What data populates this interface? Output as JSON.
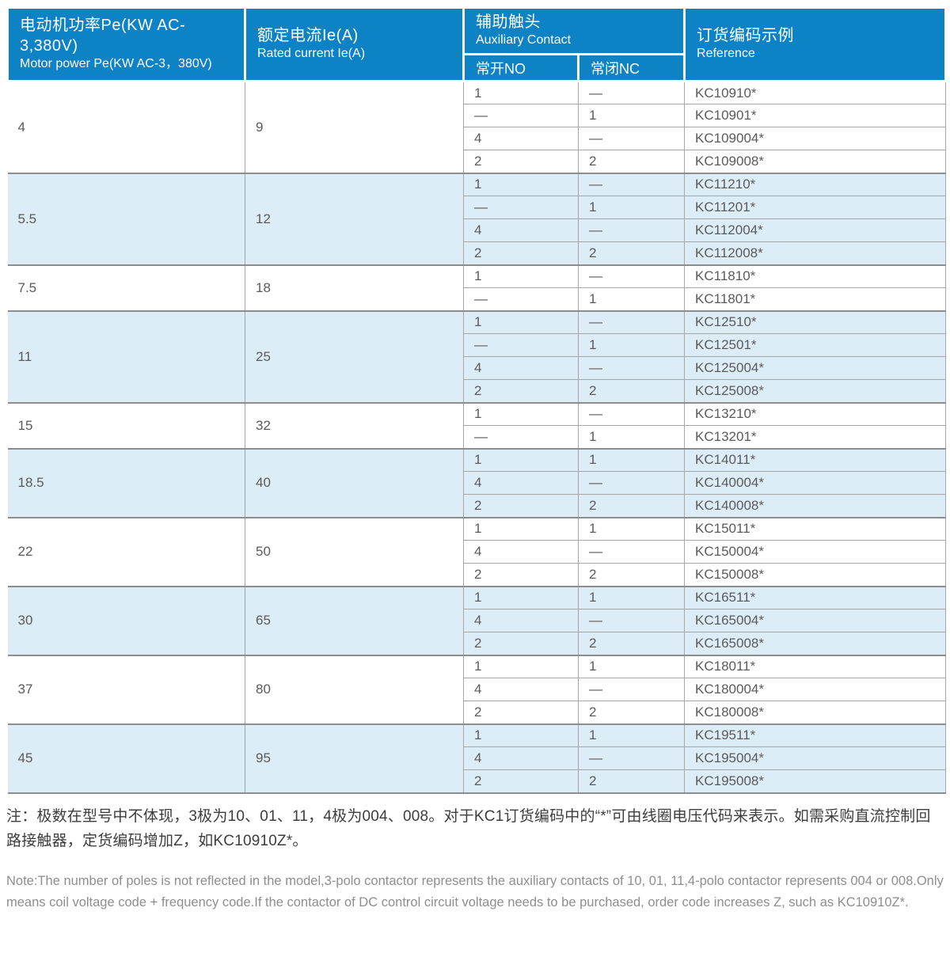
{
  "colors": {
    "header_bg": "#0d82c5",
    "row_bg": "#ffffff",
    "row_alt_bg": "#ddedf8",
    "border_inner": "#a6a6a6",
    "border_group": "#8d8d8d",
    "header_text": "#ffffff",
    "cell_text": "#5a5a5a",
    "note_zh_text": "#3d3d3d",
    "note_en_text": "#8e8e8e"
  },
  "table": {
    "header": {
      "motor_power": {
        "zh": "电动机功率Pe(KW AC-3,380V)",
        "en": "Motor power Pe(KW AC-3，380V)"
      },
      "rated_current": {
        "zh": "额定电流Ie(A)",
        "en": "Rated current Ie(A)"
      },
      "auxiliary": {
        "zh": "辅助触头",
        "en": "Auxiliary Contact"
      },
      "no_label": "常开NO",
      "nc_label": "常闭NC",
      "reference": {
        "zh": "订货编码示例",
        "en": "Reference"
      }
    },
    "groups": [
      {
        "power": "4",
        "current": "9",
        "rows": [
          [
            "1",
            "—",
            "KC10910*"
          ],
          [
            "—",
            "1",
            "KC10901*"
          ],
          [
            "4",
            "—",
            "KC109004*"
          ],
          [
            "2",
            "2",
            "KC109008*"
          ]
        ]
      },
      {
        "power": "5.5",
        "current": "12",
        "rows": [
          [
            "1",
            "—",
            "KC11210*"
          ],
          [
            "—",
            "1",
            "KC11201*"
          ],
          [
            "4",
            "—",
            "KC112004*"
          ],
          [
            "2",
            "2",
            "KC112008*"
          ]
        ]
      },
      {
        "power": "7.5",
        "current": "18",
        "rows": [
          [
            "1",
            "—",
            "KC11810*"
          ],
          [
            "—",
            "1",
            "KC11801*"
          ]
        ]
      },
      {
        "power": "11",
        "current": "25",
        "rows": [
          [
            "1",
            "—",
            "KC12510*"
          ],
          [
            "—",
            "1",
            "KC12501*"
          ],
          [
            "4",
            "—",
            "KC125004*"
          ],
          [
            "2",
            "2",
            "KC125008*"
          ]
        ]
      },
      {
        "power": "15",
        "current": "32",
        "rows": [
          [
            "1",
            "—",
            "KC13210*"
          ],
          [
            "—",
            "1",
            "KC13201*"
          ]
        ]
      },
      {
        "power": "18.5",
        "current": "40",
        "rows": [
          [
            "1",
            "1",
            "KC14011*"
          ],
          [
            "4",
            "—",
            "KC140004*"
          ],
          [
            "2",
            "2",
            "KC140008*"
          ]
        ]
      },
      {
        "power": "22",
        "current": "50",
        "rows": [
          [
            "1",
            "1",
            "KC15011*"
          ],
          [
            "4",
            "—",
            "KC150004*"
          ],
          [
            "2",
            "2",
            "KC150008*"
          ]
        ]
      },
      {
        "power": "30",
        "current": "65",
        "rows": [
          [
            "1",
            "1",
            "KC16511*"
          ],
          [
            "4",
            "—",
            "KC165004*"
          ],
          [
            "2",
            "2",
            "KC165008*"
          ]
        ]
      },
      {
        "power": "37",
        "current": "80",
        "rows": [
          [
            "1",
            "1",
            "KC18011*"
          ],
          [
            "4",
            "—",
            "KC180004*"
          ],
          [
            "2",
            "2",
            "KC180008*"
          ]
        ]
      },
      {
        "power": "45",
        "current": "95",
        "rows": [
          [
            "1",
            "1",
            "KC19511*"
          ],
          [
            "4",
            "—",
            "KC195004*"
          ],
          [
            "2",
            "2",
            "KC195008*"
          ]
        ]
      }
    ]
  },
  "notes": {
    "zh": "注：极数在型号中不体现，3极为10、01、11，4极为004、008。对于KC1订货编码中的“*”可由线圈电压代码来表示。如需采购直流控制回路接触器，定货编码增加Z，如KC10910Z*。",
    "en": "Note:The number of poles is not reflected in the model,3-polo contactor represents the auxiliary contacts of 10, 01, 11,4-polo contactor represents 004 or 008.Only means coil voltage code + frequency code.If the contactor of DC control circuit voltage needs to be purchased, order code increases Z, such as KC10910Z*."
  }
}
